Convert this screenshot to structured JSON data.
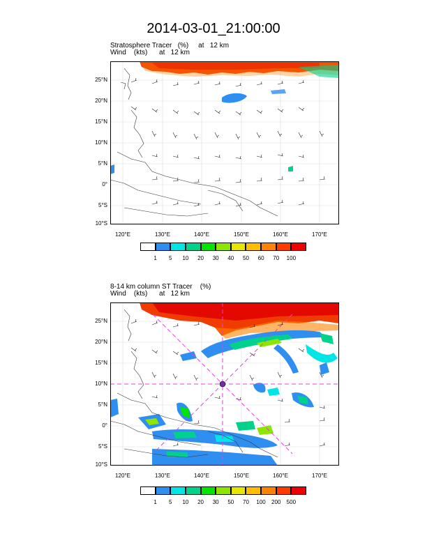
{
  "title": "2014-03-01_21:00:00",
  "panels": [
    {
      "field_line": "Stratosphere Tracer   (%)     at   12 km",
      "wind_line": "Wind    (kts)      at   12 km",
      "lat_labels": [
        "25°N",
        "20°N",
        "15°N",
        "10°N",
        "5°N",
        "0°",
        "5°S",
        "10°S"
      ],
      "lon_labels": [
        "120°E",
        "130°E",
        "140°E",
        "150°E",
        "160°E",
        "170°E"
      ],
      "colorbar": {
        "labels": [
          "1",
          "5",
          "10",
          "20",
          "30",
          "40",
          "50",
          "60",
          "70",
          "100"
        ],
        "colors": [
          "#ffffff",
          "#2e8ff0",
          "#00e6e6",
          "#00d28c",
          "#00e600",
          "#8ce600",
          "#e6e600",
          "#ffbe00",
          "#ff8200",
          "#ff3c00",
          "#f00000"
        ]
      }
    },
    {
      "field_line": "8-14 km column ST Tracer    (%)",
      "wind_line": "Wind    (kts)      at   12 km",
      "lat_labels": [
        "25°N",
        "20°N",
        "15°N",
        "10°N",
        "5°N",
        "0°",
        "5°S",
        "10°S"
      ],
      "lon_labels": [
        "120°E",
        "130°E",
        "140°E",
        "150°E",
        "160°E",
        "170°E"
      ],
      "colorbar": {
        "labels": [
          "1",
          "5",
          "10",
          "20",
          "30",
          "50",
          "70",
          "100",
          "200",
          "500"
        ],
        "colors": [
          "#ffffff",
          "#2e8ff0",
          "#00e6e6",
          "#00d28c",
          "#00e600",
          "#8ce600",
          "#e6e600",
          "#ffbe00",
          "#ff8200",
          "#ff3c00",
          "#f00000"
        ]
      }
    }
  ],
  "map_extent": {
    "lon": [
      116,
      174
    ],
    "lat": [
      -10,
      29
    ]
  },
  "cross_marker": {
    "lon": 145,
    "lat": 10
  }
}
